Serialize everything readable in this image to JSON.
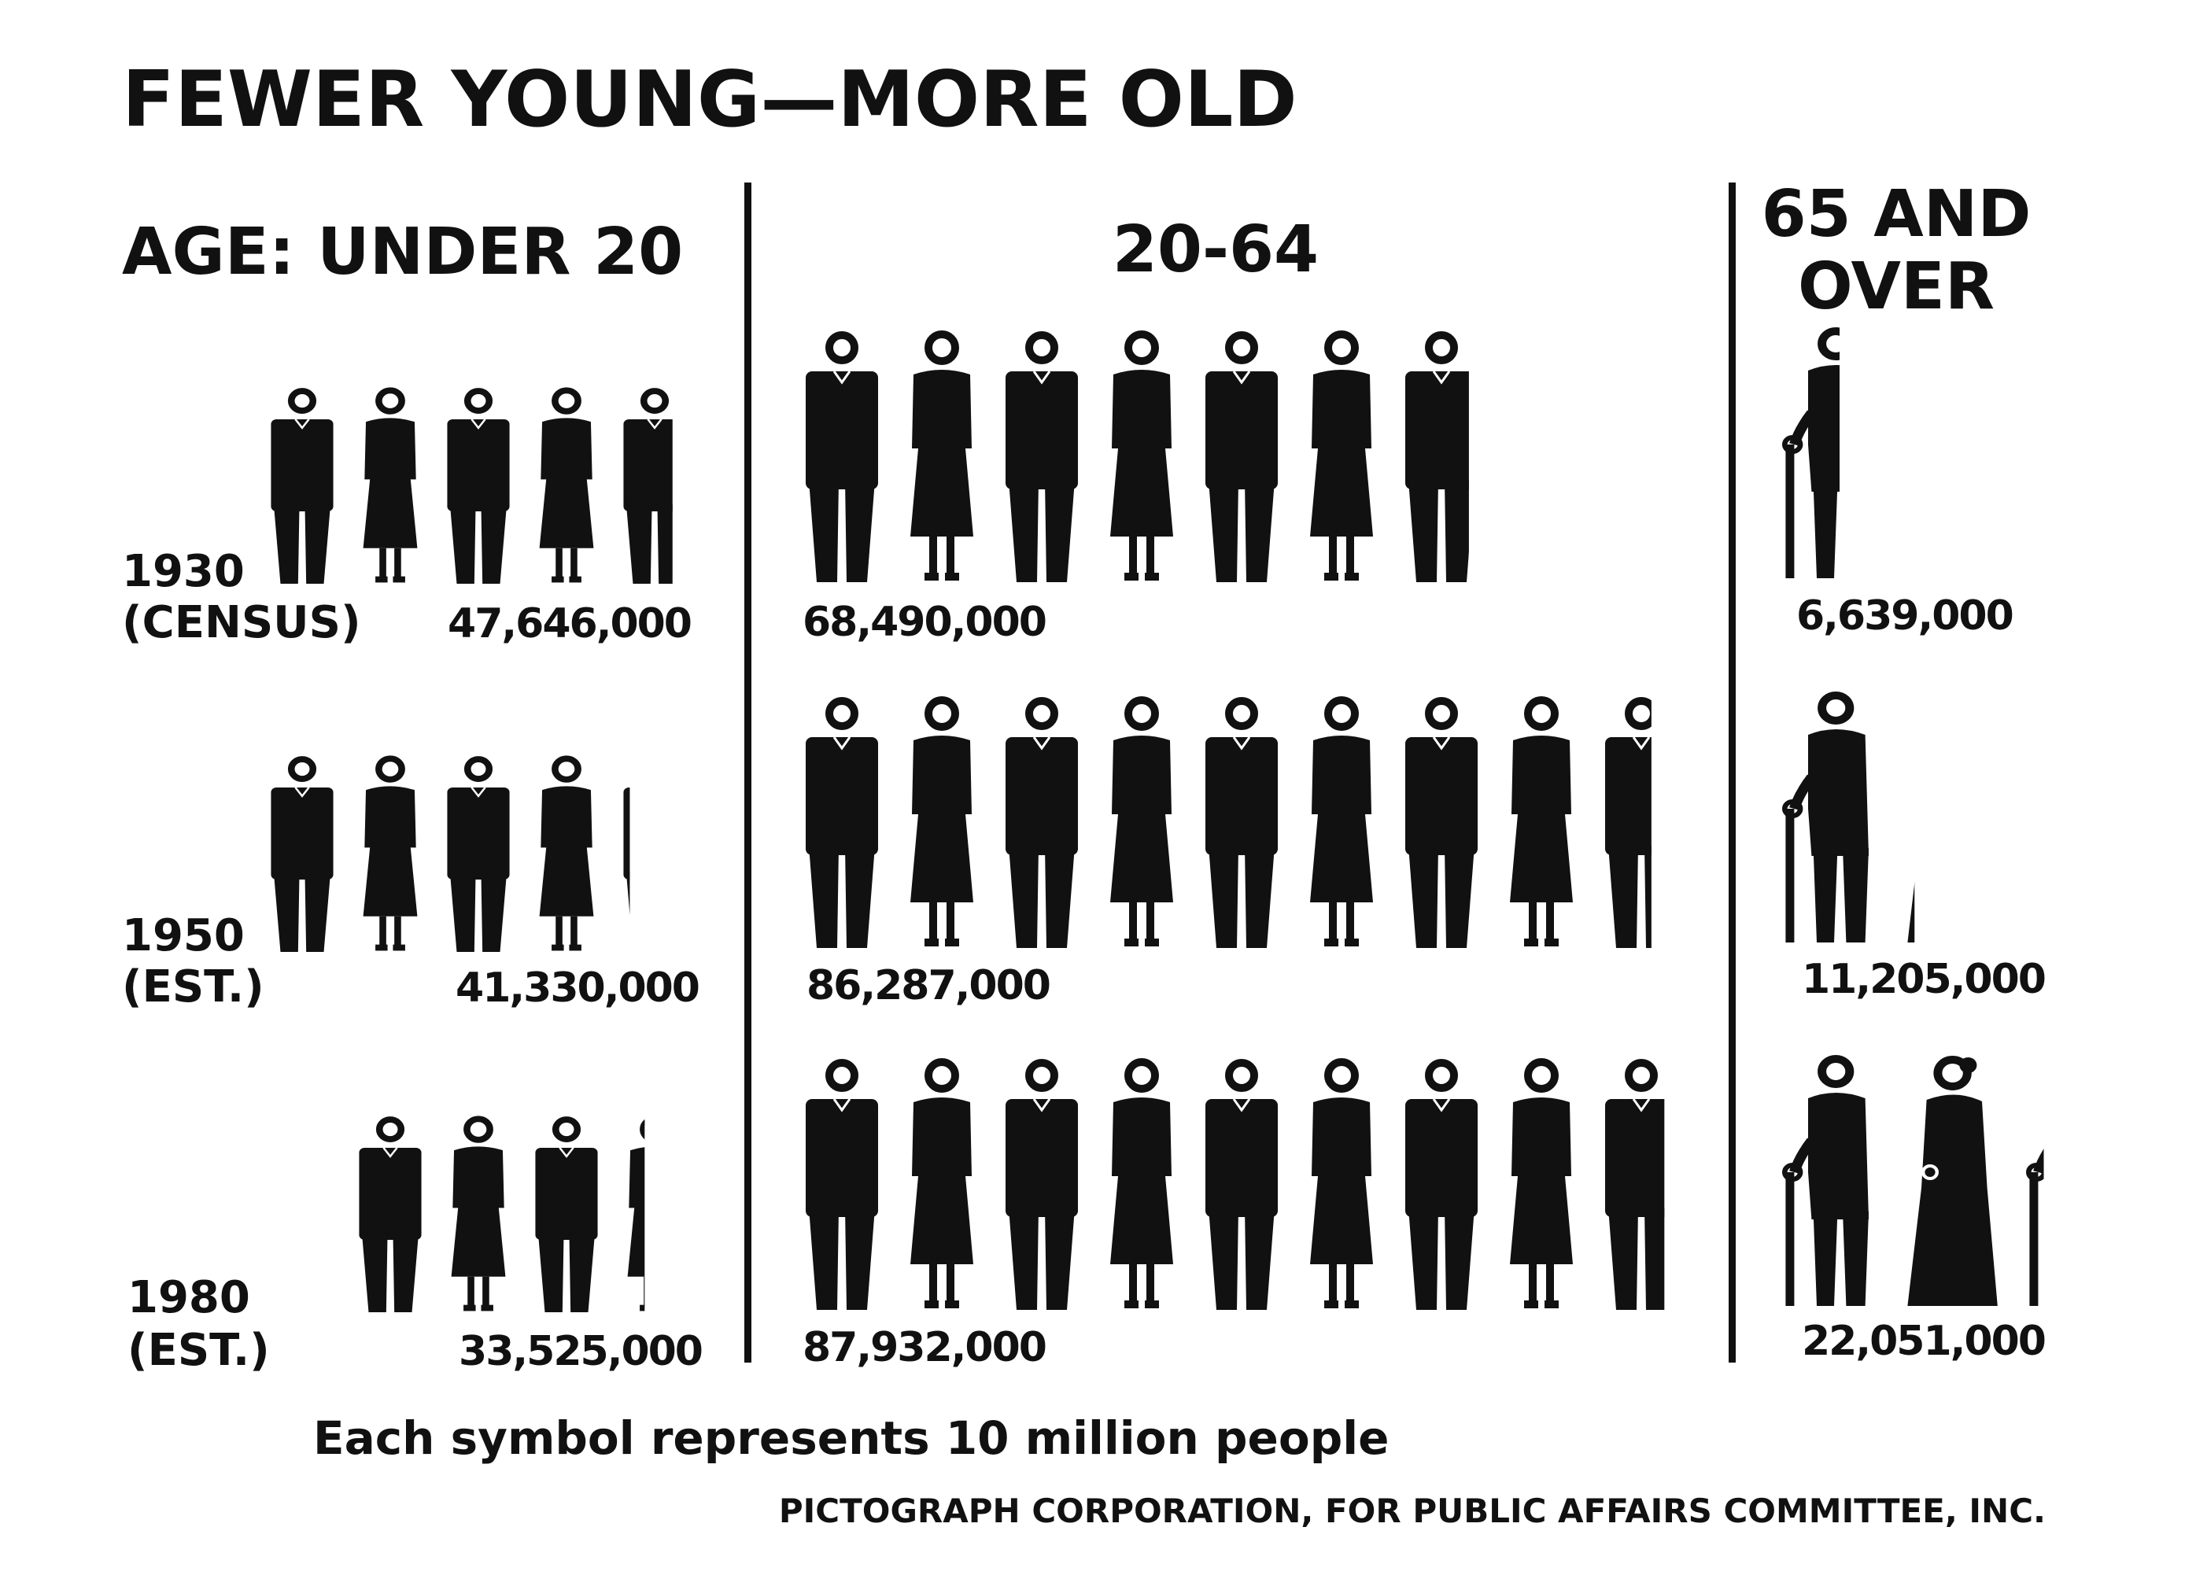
{
  "chart_data": {
    "type": "pictograph",
    "title": "FEWER YOUNG—MORE OLD",
    "note": "Each symbol represents 10 million people",
    "credit": "PICTOGRAPH CORPORATION, FOR PUBLIC AFFAIRS COMMITTEE, INC.",
    "unit_per_symbol": 10000000,
    "groups": [
      {
        "key": "under20",
        "label_lines": [
          "AGE: UNDER 20"
        ]
      },
      {
        "key": "mid",
        "label_lines": [
          "20-64"
        ]
      },
      {
        "key": "over65",
        "label_lines": [
          "65 AND",
          "OVER"
        ]
      }
    ],
    "rows": [
      {
        "year": "1930",
        "qualifier": "(CENSUS)",
        "values": {
          "under20": 47646000,
          "mid": 68490000,
          "over65": 6639000
        },
        "labels": {
          "under20": "47,646,000",
          "mid": "68,490,000",
          "over65": "6,639,000"
        }
      },
      {
        "year": "1950",
        "qualifier": "(EST.)",
        "values": {
          "under20": 41330000,
          "mid": 86287000,
          "over65": 11205000
        },
        "labels": {
          "under20": "41,330,000",
          "mid": "86,287,000",
          "over65": "11,205,000"
        }
      },
      {
        "year": "1980",
        "qualifier": "(EST.)",
        "values": {
          "under20": 33525000,
          "mid": 87932000,
          "over65": 22051000
        },
        "labels": {
          "under20": "33,525,000",
          "mid": "87,932,000",
          "over65": "22,051,000"
        }
      }
    ]
  }
}
